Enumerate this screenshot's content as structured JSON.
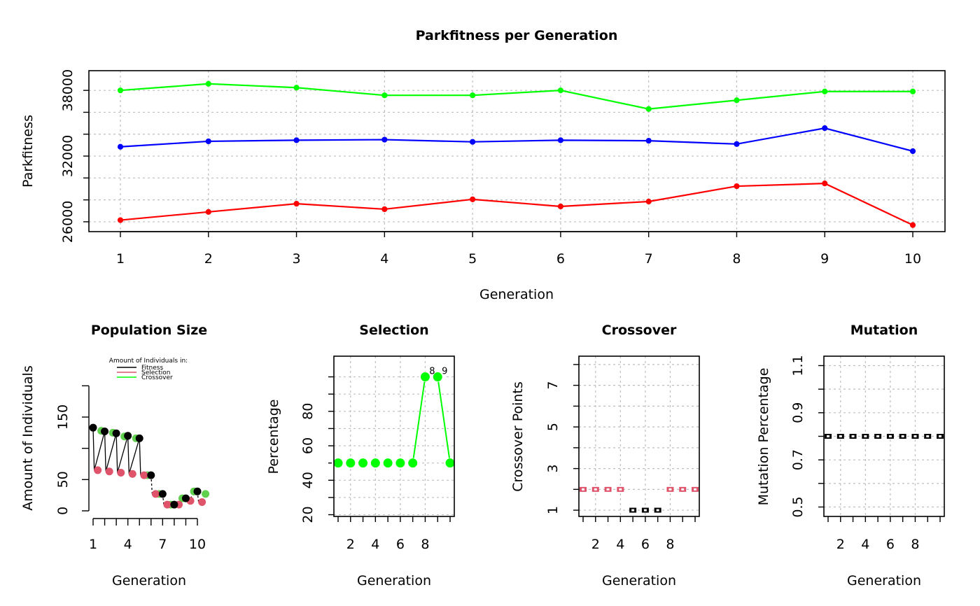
{
  "colors": {
    "green": "#00ff00",
    "blue": "#0000ff",
    "red": "#ff0000",
    "black": "#000000",
    "pink": "#df536b",
    "softgreen": "#61d04f",
    "grid": "#bebebe"
  },
  "chart_data": [
    {
      "id": "park",
      "type": "line",
      "title": "Parkfitness per Generation",
      "xlabel": "Generation",
      "ylabel": "Parkfitness",
      "x": [
        1,
        2,
        3,
        4,
        5,
        6,
        7,
        8,
        9,
        10
      ],
      "xticks": [
        "1",
        "2",
        "3",
        "4",
        "5",
        "6",
        "7",
        "8",
        "9",
        "10"
      ],
      "yticks": [
        26000,
        32000,
        38000
      ],
      "ylim": [
        25100,
        39800
      ],
      "grid": true,
      "series": [
        {
          "color": "#00ff00",
          "values": [
            38000,
            38600,
            38250,
            37550,
            37550,
            38000,
            36300,
            37100,
            37900,
            37900
          ]
        },
        {
          "color": "#0000ff",
          "values": [
            32850,
            33350,
            33450,
            33500,
            33300,
            33450,
            33400,
            33100,
            34550,
            32450
          ]
        },
        {
          "color": "#ff0000",
          "values": [
            26150,
            26900,
            27650,
            27150,
            28050,
            27400,
            27850,
            29250,
            29500,
            25700
          ]
        }
      ]
    },
    {
      "id": "pop",
      "type": "scatter",
      "title": "Population Size",
      "xlabel": "Generation",
      "ylabel": "Amount of Individuals",
      "xticks": [
        "1",
        "4",
        "7",
        "10"
      ],
      "yticks": [
        "0",
        "50",
        "150"
      ],
      "ylim": [
        0,
        200
      ],
      "legend": {
        "title": "Amount of Individuals in:",
        "entries": [
          {
            "label": "Fitness",
            "color": "#000000"
          },
          {
            "label": "Selection",
            "color": "#df536b"
          },
          {
            "label": "Crossover",
            "color": "#00ff00"
          }
        ]
      },
      "fitness": [
        133,
        127,
        124,
        120,
        116,
        57,
        27,
        10,
        20,
        31
      ],
      "selection": [
        65,
        63,
        61,
        59,
        57,
        27,
        10,
        10,
        16,
        14
      ],
      "crossover": [
        128,
        125,
        119,
        116,
        57,
        27,
        10,
        20,
        31,
        27
      ]
    },
    {
      "id": "sel",
      "type": "line",
      "title": "Selection",
      "xlabel": "Generation",
      "ylabel": "Percentage",
      "x": [
        1,
        2,
        3,
        4,
        5,
        6,
        7,
        8,
        9,
        10
      ],
      "xticks": [
        "2",
        "4",
        "6",
        "8"
      ],
      "yticks": [
        "20",
        "40",
        "60",
        "80"
      ],
      "ylim": [
        19,
        112
      ],
      "values": [
        50,
        50,
        50,
        50,
        50,
        50,
        50,
        100,
        100,
        50
      ],
      "point_labels": [
        {
          "x": 8,
          "text": "8"
        },
        {
          "x": 9,
          "text": "9"
        }
      ],
      "color": "#00ff00",
      "grid": true
    },
    {
      "id": "cross",
      "type": "scatter",
      "title": "Crossover",
      "xlabel": "Generation",
      "ylabel": "Crossover Points",
      "x": [
        1,
        2,
        3,
        4,
        5,
        6,
        7,
        8,
        9,
        10
      ],
      "xticks": [
        "2",
        "4",
        "6",
        "8"
      ],
      "yticks": [
        "1",
        "3",
        "5",
        "7"
      ],
      "ylim": [
        0.7,
        8.4
      ],
      "values": [
        2,
        2,
        2,
        2,
        1,
        1,
        1,
        2,
        2,
        2
      ],
      "colors": [
        "#df536b",
        "#df536b",
        "#df536b",
        "#df536b",
        "#000000",
        "#000000",
        "#000000",
        "#df536b",
        "#df536b",
        "#df536b"
      ],
      "grid": true
    },
    {
      "id": "mut",
      "type": "scatter",
      "title": "Mutation",
      "xlabel": "Generation",
      "ylabel": "Mutation Percentage",
      "x": [
        1,
        2,
        3,
        4,
        5,
        6,
        7,
        8,
        9,
        10
      ],
      "xticks": [
        "2",
        "4",
        "6",
        "8"
      ],
      "yticks": [
        "0.5",
        "0.7",
        "0.9",
        "1.1"
      ],
      "ylim": [
        0.46,
        1.14
      ],
      "values": [
        0.8,
        0.8,
        0.8,
        0.8,
        0.8,
        0.8,
        0.8,
        0.8,
        0.8,
        0.8
      ],
      "color": "#000000",
      "grid": true
    }
  ]
}
